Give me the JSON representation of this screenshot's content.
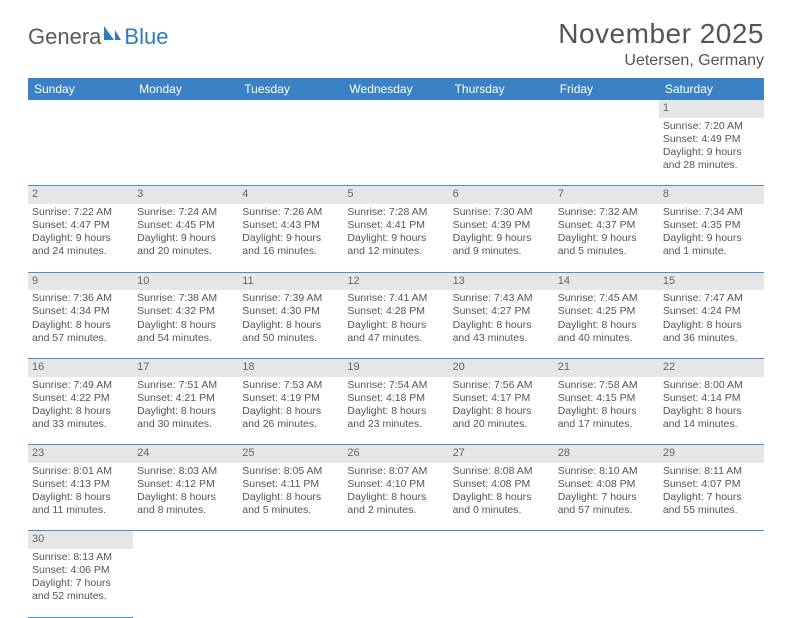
{
  "logo": {
    "part1": "Genera",
    "part2": "Blue"
  },
  "title": "November 2025",
  "location": "Uetersen, Germany",
  "weekday_headers": [
    "Sunday",
    "Monday",
    "Tuesday",
    "Wednesday",
    "Thursday",
    "Friday",
    "Saturday"
  ],
  "colors": {
    "header_bg": "#3b82c4",
    "header_text": "#ffffff",
    "daynum_bg": "#e6e6e6",
    "rule": "#4a8fc9",
    "body_text": "#555555",
    "logo_grey": "#5a5a5a",
    "logo_blue": "#2e7cc0"
  },
  "weeks": [
    [
      null,
      null,
      null,
      null,
      null,
      null,
      {
        "n": "1",
        "sr": "Sunrise: 7:20 AM",
        "ss": "Sunset: 4:49 PM",
        "d1": "Daylight: 9 hours",
        "d2": "and 28 minutes."
      }
    ],
    [
      {
        "n": "2",
        "sr": "Sunrise: 7:22 AM",
        "ss": "Sunset: 4:47 PM",
        "d1": "Daylight: 9 hours",
        "d2": "and 24 minutes."
      },
      {
        "n": "3",
        "sr": "Sunrise: 7:24 AM",
        "ss": "Sunset: 4:45 PM",
        "d1": "Daylight: 9 hours",
        "d2": "and 20 minutes."
      },
      {
        "n": "4",
        "sr": "Sunrise: 7:26 AM",
        "ss": "Sunset: 4:43 PM",
        "d1": "Daylight: 9 hours",
        "d2": "and 16 minutes."
      },
      {
        "n": "5",
        "sr": "Sunrise: 7:28 AM",
        "ss": "Sunset: 4:41 PM",
        "d1": "Daylight: 9 hours",
        "d2": "and 12 minutes."
      },
      {
        "n": "6",
        "sr": "Sunrise: 7:30 AM",
        "ss": "Sunset: 4:39 PM",
        "d1": "Daylight: 9 hours",
        "d2": "and 9 minutes."
      },
      {
        "n": "7",
        "sr": "Sunrise: 7:32 AM",
        "ss": "Sunset: 4:37 PM",
        "d1": "Daylight: 9 hours",
        "d2": "and 5 minutes."
      },
      {
        "n": "8",
        "sr": "Sunrise: 7:34 AM",
        "ss": "Sunset: 4:35 PM",
        "d1": "Daylight: 9 hours",
        "d2": "and 1 minute."
      }
    ],
    [
      {
        "n": "9",
        "sr": "Sunrise: 7:36 AM",
        "ss": "Sunset: 4:34 PM",
        "d1": "Daylight: 8 hours",
        "d2": "and 57 minutes."
      },
      {
        "n": "10",
        "sr": "Sunrise: 7:38 AM",
        "ss": "Sunset: 4:32 PM",
        "d1": "Daylight: 8 hours",
        "d2": "and 54 minutes."
      },
      {
        "n": "11",
        "sr": "Sunrise: 7:39 AM",
        "ss": "Sunset: 4:30 PM",
        "d1": "Daylight: 8 hours",
        "d2": "and 50 minutes."
      },
      {
        "n": "12",
        "sr": "Sunrise: 7:41 AM",
        "ss": "Sunset: 4:28 PM",
        "d1": "Daylight: 8 hours",
        "d2": "and 47 minutes."
      },
      {
        "n": "13",
        "sr": "Sunrise: 7:43 AM",
        "ss": "Sunset: 4:27 PM",
        "d1": "Daylight: 8 hours",
        "d2": "and 43 minutes."
      },
      {
        "n": "14",
        "sr": "Sunrise: 7:45 AM",
        "ss": "Sunset: 4:25 PM",
        "d1": "Daylight: 8 hours",
        "d2": "and 40 minutes."
      },
      {
        "n": "15",
        "sr": "Sunrise: 7:47 AM",
        "ss": "Sunset: 4:24 PM",
        "d1": "Daylight: 8 hours",
        "d2": "and 36 minutes."
      }
    ],
    [
      {
        "n": "16",
        "sr": "Sunrise: 7:49 AM",
        "ss": "Sunset: 4:22 PM",
        "d1": "Daylight: 8 hours",
        "d2": "and 33 minutes."
      },
      {
        "n": "17",
        "sr": "Sunrise: 7:51 AM",
        "ss": "Sunset: 4:21 PM",
        "d1": "Daylight: 8 hours",
        "d2": "and 30 minutes."
      },
      {
        "n": "18",
        "sr": "Sunrise: 7:53 AM",
        "ss": "Sunset: 4:19 PM",
        "d1": "Daylight: 8 hours",
        "d2": "and 26 minutes."
      },
      {
        "n": "19",
        "sr": "Sunrise: 7:54 AM",
        "ss": "Sunset: 4:18 PM",
        "d1": "Daylight: 8 hours",
        "d2": "and 23 minutes."
      },
      {
        "n": "20",
        "sr": "Sunrise: 7:56 AM",
        "ss": "Sunset: 4:17 PM",
        "d1": "Daylight: 8 hours",
        "d2": "and 20 minutes."
      },
      {
        "n": "21",
        "sr": "Sunrise: 7:58 AM",
        "ss": "Sunset: 4:15 PM",
        "d1": "Daylight: 8 hours",
        "d2": "and 17 minutes."
      },
      {
        "n": "22",
        "sr": "Sunrise: 8:00 AM",
        "ss": "Sunset: 4:14 PM",
        "d1": "Daylight: 8 hours",
        "d2": "and 14 minutes."
      }
    ],
    [
      {
        "n": "23",
        "sr": "Sunrise: 8:01 AM",
        "ss": "Sunset: 4:13 PM",
        "d1": "Daylight: 8 hours",
        "d2": "and 11 minutes."
      },
      {
        "n": "24",
        "sr": "Sunrise: 8:03 AM",
        "ss": "Sunset: 4:12 PM",
        "d1": "Daylight: 8 hours",
        "d2": "and 8 minutes."
      },
      {
        "n": "25",
        "sr": "Sunrise: 8:05 AM",
        "ss": "Sunset: 4:11 PM",
        "d1": "Daylight: 8 hours",
        "d2": "and 5 minutes."
      },
      {
        "n": "26",
        "sr": "Sunrise: 8:07 AM",
        "ss": "Sunset: 4:10 PM",
        "d1": "Daylight: 8 hours",
        "d2": "and 2 minutes."
      },
      {
        "n": "27",
        "sr": "Sunrise: 8:08 AM",
        "ss": "Sunset: 4:08 PM",
        "d1": "Daylight: 8 hours",
        "d2": "and 0 minutes."
      },
      {
        "n": "28",
        "sr": "Sunrise: 8:10 AM",
        "ss": "Sunset: 4:08 PM",
        "d1": "Daylight: 7 hours",
        "d2": "and 57 minutes."
      },
      {
        "n": "29",
        "sr": "Sunrise: 8:11 AM",
        "ss": "Sunset: 4:07 PM",
        "d1": "Daylight: 7 hours",
        "d2": "and 55 minutes."
      }
    ],
    [
      {
        "n": "30",
        "sr": "Sunrise: 8:13 AM",
        "ss": "Sunset: 4:06 PM",
        "d1": "Daylight: 7 hours",
        "d2": "and 52 minutes."
      },
      null,
      null,
      null,
      null,
      null,
      null
    ]
  ]
}
